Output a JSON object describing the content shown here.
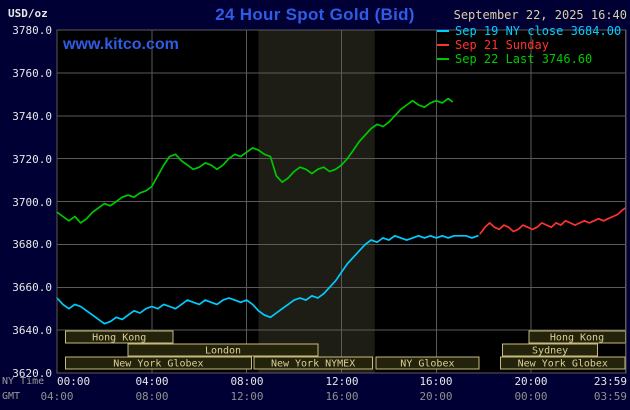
{
  "header": {
    "unit_label": "USD/oz",
    "title": "24 Hour Spot Gold (Bid)",
    "datetime": "September 22, 2025 16:40",
    "watermark": "www.kitco.com"
  },
  "legend": [
    {
      "label": "Sep 19 NY close 3684.00",
      "color": "#00ccff"
    },
    {
      "label": "Sep 21 Sunday",
      "color": "#ff3232"
    },
    {
      "label": "Sep 22 Last 3746.60",
      "color": "#00c800"
    }
  ],
  "axes": {
    "row_labels": [
      "NY Time",
      "GMT"
    ],
    "y_ticks": [
      "3780.0",
      "3760.0",
      "3740.0",
      "3720.0",
      "3700.0",
      "3680.0",
      "3660.0",
      "3640.0",
      "3620.0"
    ],
    "x_ticks_ny": [
      "00:00",
      "04:00",
      "08:00",
      "12:00",
      "16:00",
      "20:00",
      "23:59"
    ],
    "x_ticks_gmt": [
      "04:00",
      "08:00",
      "12:00",
      "16:00",
      "20:00",
      "00:00",
      "03:59"
    ]
  },
  "colors": {
    "background": "#000035",
    "plot_bg": "#000000",
    "band": "#1d1d16",
    "grid": "#5a5a5a",
    "axis_text": "#e6e6e6",
    "gmt_text": "#8f8f8f",
    "session_border": "#c9b97e",
    "session_fill": "#23230b",
    "session_text": "#dccf96"
  },
  "chart_data": {
    "type": "line",
    "title": "24 Hour Spot Gold (Bid)",
    "xlabel": "NY Time",
    "ylabel": "USD/oz",
    "ylim": [
      3620,
      3780
    ],
    "y_tick_step": 20,
    "xlim_hours": [
      0,
      24
    ],
    "x_tick_hours": [
      0,
      4,
      8,
      12,
      16,
      20,
      23.983
    ],
    "grid": true,
    "legend_position": "top-right",
    "shaded_region_hours": [
      8.5,
      13.4
    ],
    "series": [
      {
        "name": "Sep 19 NY close 3684.00",
        "color": "#00ccff",
        "points": [
          [
            0,
            3655
          ],
          [
            0.25,
            3652
          ],
          [
            0.5,
            3650
          ],
          [
            0.75,
            3652
          ],
          [
            1,
            3651
          ],
          [
            1.25,
            3649
          ],
          [
            1.5,
            3647
          ],
          [
            1.75,
            3645
          ],
          [
            2,
            3643
          ],
          [
            2.25,
            3644
          ],
          [
            2.5,
            3646
          ],
          [
            2.75,
            3645
          ],
          [
            3,
            3647
          ],
          [
            3.25,
            3649
          ],
          [
            3.5,
            3648
          ],
          [
            3.75,
            3650
          ],
          [
            4,
            3651
          ],
          [
            4.25,
            3650
          ],
          [
            4.5,
            3652
          ],
          [
            4.75,
            3651
          ],
          [
            5,
            3650
          ],
          [
            5.25,
            3652
          ],
          [
            5.5,
            3654
          ],
          [
            5.75,
            3653
          ],
          [
            6,
            3652
          ],
          [
            6.25,
            3654
          ],
          [
            6.5,
            3653
          ],
          [
            6.75,
            3652
          ],
          [
            7,
            3654
          ],
          [
            7.25,
            3655
          ],
          [
            7.5,
            3654
          ],
          [
            7.75,
            3653
          ],
          [
            8,
            3654
          ],
          [
            8.25,
            3652
          ],
          [
            8.5,
            3649
          ],
          [
            8.75,
            3647
          ],
          [
            9,
            3646
          ],
          [
            9.25,
            3648
          ],
          [
            9.5,
            3650
          ],
          [
            9.75,
            3652
          ],
          [
            10,
            3654
          ],
          [
            10.25,
            3655
          ],
          [
            10.5,
            3654
          ],
          [
            10.75,
            3656
          ],
          [
            11,
            3655
          ],
          [
            11.25,
            3657
          ],
          [
            11.5,
            3660
          ],
          [
            11.75,
            3663
          ],
          [
            12,
            3667
          ],
          [
            12.25,
            3671
          ],
          [
            12.5,
            3674
          ],
          [
            12.75,
            3677
          ],
          [
            13,
            3680
          ],
          [
            13.25,
            3682
          ],
          [
            13.5,
            3681
          ],
          [
            13.75,
            3683
          ],
          [
            14,
            3682
          ],
          [
            14.25,
            3684
          ],
          [
            14.5,
            3683
          ],
          [
            14.75,
            3682
          ],
          [
            15,
            3683
          ],
          [
            15.25,
            3684
          ],
          [
            15.5,
            3683
          ],
          [
            15.75,
            3684
          ],
          [
            16,
            3683
          ],
          [
            16.25,
            3684
          ],
          [
            16.5,
            3683
          ],
          [
            16.75,
            3684
          ],
          [
            17,
            3684
          ],
          [
            17.25,
            3684
          ],
          [
            17.5,
            3683
          ],
          [
            17.75,
            3684
          ]
        ]
      },
      {
        "name": "Sep 21 Sunday",
        "color": "#ff3232",
        "points": [
          [
            17.85,
            3685
          ],
          [
            18.05,
            3688
          ],
          [
            18.25,
            3690
          ],
          [
            18.45,
            3688
          ],
          [
            18.65,
            3687
          ],
          [
            18.85,
            3689
          ],
          [
            19.05,
            3688
          ],
          [
            19.25,
            3686
          ],
          [
            19.45,
            3687
          ],
          [
            19.65,
            3689
          ],
          [
            19.85,
            3688
          ],
          [
            20.05,
            3687
          ],
          [
            20.25,
            3688
          ],
          [
            20.45,
            3690
          ],
          [
            20.65,
            3689
          ],
          [
            20.85,
            3688
          ],
          [
            21.05,
            3690
          ],
          [
            21.25,
            3689
          ],
          [
            21.45,
            3691
          ],
          [
            21.65,
            3690
          ],
          [
            21.85,
            3689
          ],
          [
            22.05,
            3690
          ],
          [
            22.25,
            3691
          ],
          [
            22.45,
            3690
          ],
          [
            22.65,
            3691
          ],
          [
            22.85,
            3692
          ],
          [
            23.05,
            3691
          ],
          [
            23.25,
            3692
          ],
          [
            23.45,
            3693
          ],
          [
            23.65,
            3694
          ],
          [
            23.85,
            3696
          ],
          [
            23.98,
            3697
          ]
        ]
      },
      {
        "name": "Sep 22 Last 3746.60",
        "color": "#00c800",
        "points": [
          [
            0,
            3695
          ],
          [
            0.25,
            3693
          ],
          [
            0.5,
            3691
          ],
          [
            0.75,
            3693
          ],
          [
            1,
            3690
          ],
          [
            1.25,
            3692
          ],
          [
            1.5,
            3695
          ],
          [
            1.75,
            3697
          ],
          [
            2,
            3699
          ],
          [
            2.25,
            3698
          ],
          [
            2.5,
            3700
          ],
          [
            2.75,
            3702
          ],
          [
            3,
            3703
          ],
          [
            3.25,
            3702
          ],
          [
            3.5,
            3704
          ],
          [
            3.75,
            3705
          ],
          [
            4,
            3707
          ],
          [
            4.25,
            3712
          ],
          [
            4.5,
            3717
          ],
          [
            4.75,
            3721
          ],
          [
            5,
            3722
          ],
          [
            5.25,
            3719
          ],
          [
            5.5,
            3717
          ],
          [
            5.75,
            3715
          ],
          [
            6,
            3716
          ],
          [
            6.25,
            3718
          ],
          [
            6.5,
            3717
          ],
          [
            6.75,
            3715
          ],
          [
            7,
            3717
          ],
          [
            7.25,
            3720
          ],
          [
            7.5,
            3722
          ],
          [
            7.75,
            3721
          ],
          [
            8,
            3723
          ],
          [
            8.25,
            3725
          ],
          [
            8.5,
            3724
          ],
          [
            8.75,
            3722
          ],
          [
            9,
            3721
          ],
          [
            9.25,
            3712
          ],
          [
            9.5,
            3709
          ],
          [
            9.75,
            3711
          ],
          [
            10,
            3714
          ],
          [
            10.25,
            3716
          ],
          [
            10.5,
            3715
          ],
          [
            10.75,
            3713
          ],
          [
            11,
            3715
          ],
          [
            11.25,
            3716
          ],
          [
            11.5,
            3714
          ],
          [
            11.75,
            3715
          ],
          [
            12,
            3717
          ],
          [
            12.25,
            3720
          ],
          [
            12.5,
            3724
          ],
          [
            12.75,
            3728
          ],
          [
            13,
            3731
          ],
          [
            13.25,
            3734
          ],
          [
            13.5,
            3736
          ],
          [
            13.75,
            3735
          ],
          [
            14,
            3737
          ],
          [
            14.25,
            3740
          ],
          [
            14.5,
            3743
          ],
          [
            14.75,
            3745
          ],
          [
            15,
            3747
          ],
          [
            15.25,
            3745
          ],
          [
            15.5,
            3744
          ],
          [
            15.75,
            3746
          ],
          [
            16,
            3747
          ],
          [
            16.25,
            3746
          ],
          [
            16.5,
            3748
          ],
          [
            16.67,
            3746.6
          ]
        ]
      }
    ],
    "sessions": [
      {
        "row": 0,
        "label": "Hong Kong",
        "start": 0.35,
        "end": 4.9
      },
      {
        "row": 0,
        "label": "Hong Kong",
        "start": 19.9,
        "end": 23.97
      },
      {
        "row": 1,
        "label": "London",
        "start": 3.0,
        "end": 11.0
      },
      {
        "row": 1,
        "label": "Sydney",
        "start": 18.8,
        "end": 22.8
      },
      {
        "row": 2,
        "label": "New York Globex",
        "start": 0.35,
        "end": 8.2
      },
      {
        "row": 2,
        "label": "New York NYMEX",
        "start": 8.3,
        "end": 13.3
      },
      {
        "row": 2,
        "label": "NY Globex",
        "start": 13.45,
        "end": 17.8
      },
      {
        "row": 2,
        "label": "New York Globex",
        "start": 18.7,
        "end": 23.97
      }
    ]
  }
}
